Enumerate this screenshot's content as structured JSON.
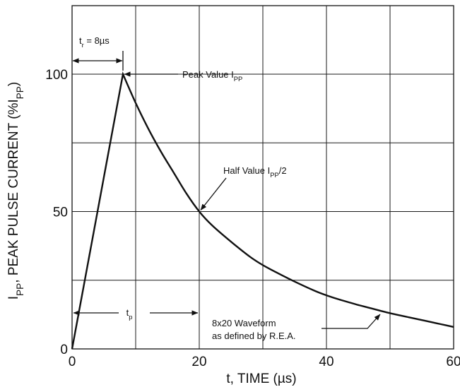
{
  "chart_data": {
    "type": "line",
    "title": "",
    "xlabel": "t, TIME (µs)",
    "ylabel": "I",
    "ylabel_sub": "PP",
    "ylabel_rest": ", PEAK PULSE CURRENT (%I",
    "ylabel_sub2": "PP",
    "ylabel_end": ")",
    "xlim": [
      0,
      60
    ],
    "ylim": [
      0,
      100
    ],
    "x_grid": [
      0,
      10,
      20,
      30,
      40,
      50,
      60
    ],
    "y_grid": [
      0,
      25,
      50,
      75,
      100
    ],
    "x_tick_labels": [
      {
        "x": 0,
        "label": "0"
      },
      {
        "x": 20,
        "label": "20"
      },
      {
        "x": 40,
        "label": "40"
      },
      {
        "x": 60,
        "label": "60"
      }
    ],
    "y_tick_labels": [
      {
        "y": 0,
        "label": "0"
      },
      {
        "y": 50,
        "label": "50"
      },
      {
        "y": 100,
        "label": "100"
      }
    ],
    "grid": true,
    "series": [
      {
        "x": [
          0,
          8,
          10,
          12,
          14,
          16,
          18,
          20,
          22,
          25,
          28,
          30,
          32,
          35,
          38,
          40,
          42,
          45,
          48,
          50,
          53,
          56,
          58,
          60
        ],
        "y": [
          0,
          100,
          89.5,
          80.1,
          71.7,
          64.1,
          56.5,
          50,
          45,
          39,
          33.5,
          30.5,
          28,
          24.5,
          21.3,
          19.5,
          18,
          16,
          14.2,
          13,
          11.5,
          10,
          9,
          8
        ]
      }
    ],
    "annotations": {
      "rise_time": {
        "t": "t",
        "t_sub": "r",
        "rest": " = 8µs",
        "x_from": 0,
        "x_to": 8
      },
      "peak": {
        "text": "Peak Value I",
        "sub": "PP",
        "x": 8,
        "y": 100
      },
      "half": {
        "text": "Half Value I",
        "sub": "PP",
        "rest": "/2",
        "x": 20,
        "y": 50
      },
      "tp": {
        "t": "t",
        "t_sub": "p",
        "x_from": 0,
        "x_to": 20,
        "y": 12
      },
      "waveform": {
        "line1": "8x20 Waveform",
        "line2": "as defined by R.E.A.",
        "x": 48,
        "y": 13
      }
    }
  }
}
